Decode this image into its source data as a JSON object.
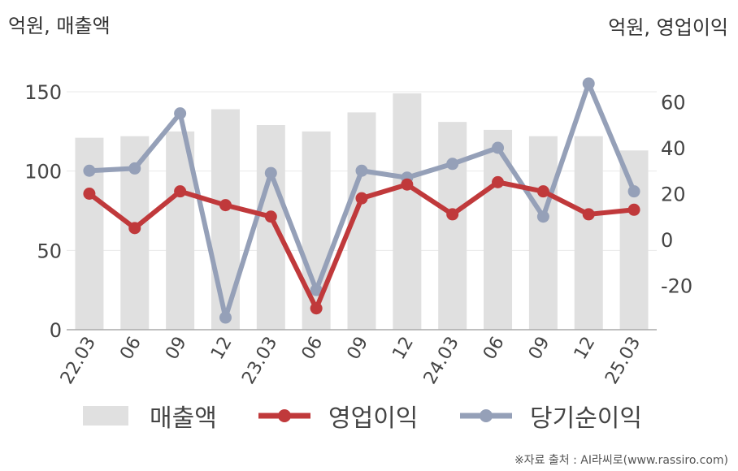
{
  "units": {
    "left": "억원, 매출액",
    "right": "억원, 영업이익"
  },
  "legend": {
    "sales": "매출액",
    "op_income": "영업이익",
    "net_income": "당기순이익"
  },
  "source": "※자료 출처 : AI라씨로(www.rassiro.com)",
  "colors": {
    "bar": "#e0e0e0",
    "op_income": "#c0393b",
    "net_income": "#95a0b8",
    "grid": "#eaeaea",
    "axis": "#aaaaaa"
  },
  "chart_data": {
    "type": "bar+line",
    "categories": [
      "22.03",
      "06",
      "09",
      "12",
      "23.03",
      "06",
      "09",
      "12",
      "24.03",
      "06",
      "09",
      "12",
      "25.03"
    ],
    "y_left": {
      "min": 0,
      "max": 150,
      "ticks": [
        0,
        50,
        100,
        150
      ],
      "label": "억원, 매출액"
    },
    "y_right": {
      "min": -35,
      "max": 70,
      "ticks": [
        -20,
        0,
        20,
        40,
        60
      ],
      "label": "억원, 영업이익"
    },
    "series": [
      {
        "name": "매출액",
        "type": "bar",
        "axis": "left",
        "values": [
          121,
          122,
          125,
          139,
          129,
          125,
          137,
          149,
          131,
          126,
          122,
          122,
          113
        ]
      },
      {
        "name": "영업이익",
        "type": "line",
        "axis": "right",
        "values": [
          20,
          5,
          21,
          15,
          10,
          -30,
          18,
          24,
          11,
          25,
          21,
          11,
          13
        ]
      },
      {
        "name": "당기순이익",
        "type": "line",
        "axis": "right",
        "values": [
          30,
          31,
          55,
          -34,
          29,
          -22,
          30,
          27,
          33,
          40,
          10,
          68,
          21
        ]
      }
    ],
    "grid": true,
    "legend_position": "bottom"
  }
}
